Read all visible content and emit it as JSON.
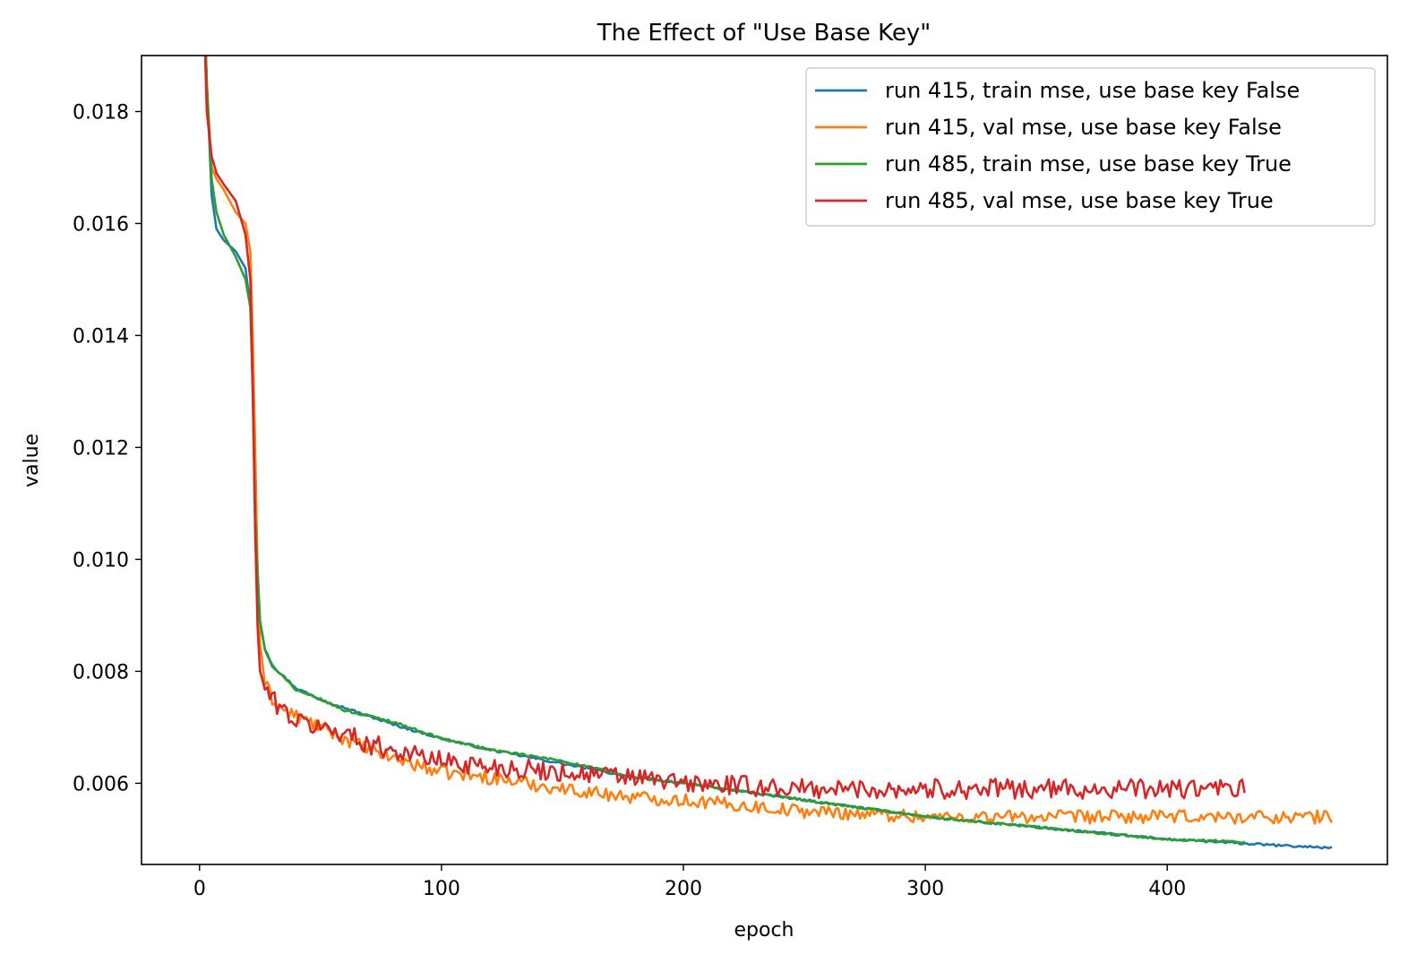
{
  "chart_data": {
    "type": "line",
    "title": "The Effect of \"Use Base Key\"",
    "xlabel": "epoch",
    "ylabel": "value",
    "xlim": [
      -24,
      491
    ],
    "ylim": [
      0.00455,
      0.019
    ],
    "xticks": [
      0,
      100,
      200,
      300,
      400
    ],
    "xtick_labels": [
      "0",
      "100",
      "200",
      "300",
      "400"
    ],
    "yticks": [
      0.006,
      0.008,
      0.01,
      0.012,
      0.014,
      0.016,
      0.018
    ],
    "ytick_labels": [
      "0.006",
      "0.008",
      "0.010",
      "0.012",
      "0.014",
      "0.016",
      "0.018"
    ],
    "grid": false,
    "legend_position": "top-right",
    "series": [
      {
        "name": "run 415, train mse, use base key False",
        "color": "#1f77b4",
        "noise": 2e-05,
        "x": [
          0,
          3,
          5,
          7,
          10,
          15,
          19,
          21,
          22,
          23,
          24,
          25,
          27,
          30,
          35,
          40,
          50,
          60,
          70,
          80,
          100,
          120,
          150,
          180,
          200,
          250,
          300,
          350,
          400,
          450,
          468
        ],
        "y": [
          0.0225,
          0.0185,
          0.0165,
          0.0159,
          0.0157,
          0.0155,
          0.0152,
          0.0145,
          0.0135,
          0.011,
          0.0098,
          0.0089,
          0.0084,
          0.0081,
          0.0079,
          0.0077,
          0.0075,
          0.00735,
          0.0072,
          0.00705,
          0.0068,
          0.0066,
          0.00635,
          0.0061,
          0.006,
          0.0057,
          0.0054,
          0.0052,
          0.005,
          0.00488,
          0.00485
        ]
      },
      {
        "name": "run 415, val mse, use base key False",
        "color": "#ff7f0e",
        "noise": 0.00012,
        "x": [
          0,
          3,
          5,
          7,
          10,
          15,
          19,
          21,
          22,
          23,
          24,
          25,
          27,
          30,
          35,
          40,
          50,
          60,
          70,
          80,
          100,
          120,
          150,
          180,
          200,
          250,
          280,
          300,
          350,
          400,
          450,
          468
        ],
        "y": [
          0.0225,
          0.0185,
          0.017,
          0.0168,
          0.0166,
          0.0162,
          0.016,
          0.0155,
          0.014,
          0.012,
          0.0098,
          0.0085,
          0.0078,
          0.0075,
          0.0073,
          0.0072,
          0.007,
          0.0068,
          0.0066,
          0.00645,
          0.0062,
          0.0061,
          0.0059,
          0.00575,
          0.0057,
          0.0055,
          0.00545,
          0.0054,
          0.0054,
          0.0054,
          0.0054,
          0.0054
        ]
      },
      {
        "name": "run 485, train mse, use base key True",
        "color": "#2ca02c",
        "noise": 2e-05,
        "x": [
          0,
          3,
          5,
          7,
          10,
          15,
          19,
          21,
          22,
          23,
          24,
          25,
          27,
          30,
          35,
          40,
          50,
          60,
          70,
          80,
          100,
          120,
          150,
          180,
          200,
          250,
          300,
          350,
          400,
          432
        ],
        "y": [
          0.0225,
          0.0185,
          0.0168,
          0.0162,
          0.0158,
          0.0154,
          0.015,
          0.0145,
          0.013,
          0.0108,
          0.0097,
          0.0089,
          0.0084,
          0.0081,
          0.0079,
          0.00765,
          0.0075,
          0.0073,
          0.0072,
          0.0071,
          0.0068,
          0.0066,
          0.0064,
          0.0061,
          0.006,
          0.0057,
          0.0054,
          0.0052,
          0.005,
          0.00495
        ]
      },
      {
        "name": "run 485, val mse, use base key True",
        "color": "#d62728",
        "noise": 0.00018,
        "x": [
          0,
          3,
          5,
          7,
          10,
          15,
          19,
          21,
          22,
          23,
          24,
          25,
          27,
          30,
          35,
          40,
          50,
          60,
          70,
          80,
          100,
          120,
          150,
          180,
          200,
          250,
          300,
          350,
          400,
          432
        ],
        "y": [
          0.0225,
          0.018,
          0.0172,
          0.0169,
          0.0167,
          0.0164,
          0.0158,
          0.015,
          0.013,
          0.0105,
          0.0088,
          0.008,
          0.0077,
          0.0075,
          0.0073,
          0.0071,
          0.007,
          0.0069,
          0.0067,
          0.0066,
          0.0064,
          0.0063,
          0.0062,
          0.0061,
          0.006,
          0.0059,
          0.0059,
          0.0059,
          0.0059,
          0.0059
        ]
      }
    ]
  }
}
